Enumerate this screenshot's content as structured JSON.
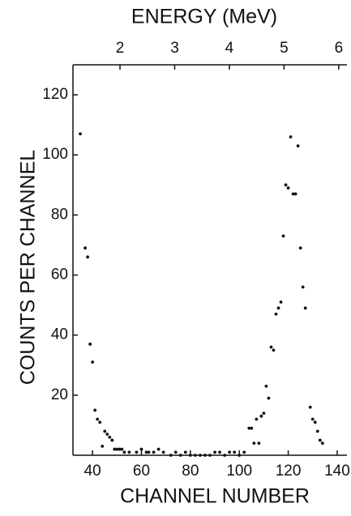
{
  "chart_data": {
    "type": "scatter",
    "x_label": "CHANNEL NUMBER",
    "y_label": "COUNTS PER CHANNEL",
    "x2_label": "ENERGY (MeV)",
    "xlim": [
      32,
      144
    ],
    "xticks": [
      40,
      60,
      80,
      100,
      120,
      140
    ],
    "ylim": [
      0,
      130
    ],
    "yticks": [
      20,
      40,
      60,
      80,
      100,
      120
    ],
    "x2lim": [
      1.14,
      6.15
    ],
    "x2ticks": [
      2,
      3,
      4,
      5,
      6
    ],
    "series": [
      {
        "color": "#111111",
        "x": [
          35,
          37,
          38,
          39,
          40,
          41,
          42,
          43,
          44,
          45,
          46,
          47,
          48,
          49,
          50,
          51,
          52,
          53,
          55,
          58,
          60,
          62,
          63,
          65,
          67,
          69,
          72,
          74,
          76,
          78,
          80,
          82,
          84,
          86,
          88,
          90,
          92,
          94,
          96,
          98,
          100,
          102,
          104,
          105,
          106,
          107,
          108,
          109,
          110,
          111,
          112,
          113,
          114,
          115,
          116,
          117,
          118,
          119,
          120,
          121,
          122,
          123,
          124,
          125,
          126,
          127,
          129,
          130,
          131,
          132,
          133,
          134
        ],
        "values": [
          107,
          69,
          66,
          37,
          31,
          15,
          12,
          11,
          3,
          8,
          7,
          6,
          5,
          2,
          2,
          2,
          2,
          1,
          1,
          1,
          2,
          1,
          1,
          1,
          2,
          1,
          0,
          1,
          0,
          1,
          0,
          0,
          0,
          0,
          0,
          1,
          1,
          0,
          1,
          1,
          0,
          1,
          9,
          9,
          4,
          12,
          4,
          13,
          14,
          23,
          19,
          36,
          35,
          47,
          49,
          51,
          73,
          90,
          89,
          106,
          87,
          87,
          103,
          69,
          56,
          49,
          16,
          12,
          11,
          8,
          5,
          4
        ]
      }
    ]
  }
}
